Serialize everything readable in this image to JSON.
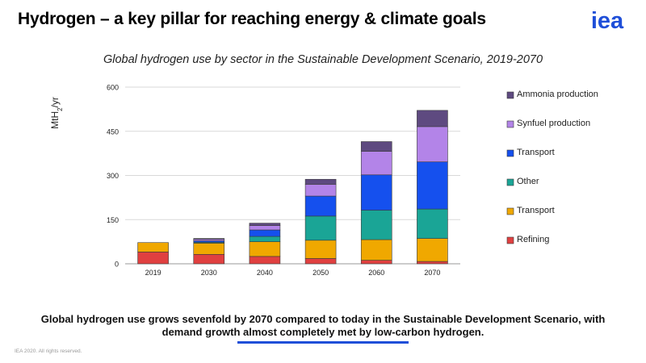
{
  "slide": {
    "title": "Hydrogen – a key pillar for reaching energy & climate goals",
    "logo_text": "iea",
    "takeaway": "Global hydrogen use grows sevenfold by 2070 compared to today in the Sustainable Development Scenario, with demand growth almost completely met by low-carbon hydrogen.",
    "copyright": "IEA 2020. All rights reserved.",
    "accent_color": "#1f4fd8"
  },
  "chart_data": {
    "type": "bar",
    "stacked": true,
    "title": "Global hydrogen use by sector in the Sustainable Development Scenario, 2019-2070",
    "ylabel_base": "MtH",
    "ylabel_sub": "2",
    "ylabel_tail": "/yr",
    "xlabel": "",
    "ylim": [
      0,
      600
    ],
    "yticks": [
      0,
      150,
      300,
      450,
      600
    ],
    "grid": true,
    "legend_position": "right",
    "categories": [
      "2019",
      "2030",
      "2040",
      "2050",
      "2060",
      "2070"
    ],
    "series": [
      {
        "name": "Refining",
        "color": "#e04040",
        "values": [
          40,
          32,
          25,
          18,
          12,
          8
        ]
      },
      {
        "name": "Transport",
        "color": "#f0a800",
        "values": [
          32,
          38,
          50,
          62,
          70,
          78
        ]
      },
      {
        "name": "Other",
        "color": "#1aa596",
        "values": [
          0,
          3,
          18,
          82,
          100,
          100
        ]
      },
      {
        "name": "Transport",
        "color": "#1550ee",
        "values": [
          0,
          5,
          22,
          68,
          120,
          160
        ]
      },
      {
        "name": "Synfuel production",
        "color": "#b384e8",
        "values": [
          0,
          5,
          15,
          40,
          80,
          120
        ]
      },
      {
        "name": "Ammonia production",
        "color": "#5e4a80",
        "values": [
          0,
          3,
          8,
          17,
          33,
          55
        ]
      }
    ]
  }
}
